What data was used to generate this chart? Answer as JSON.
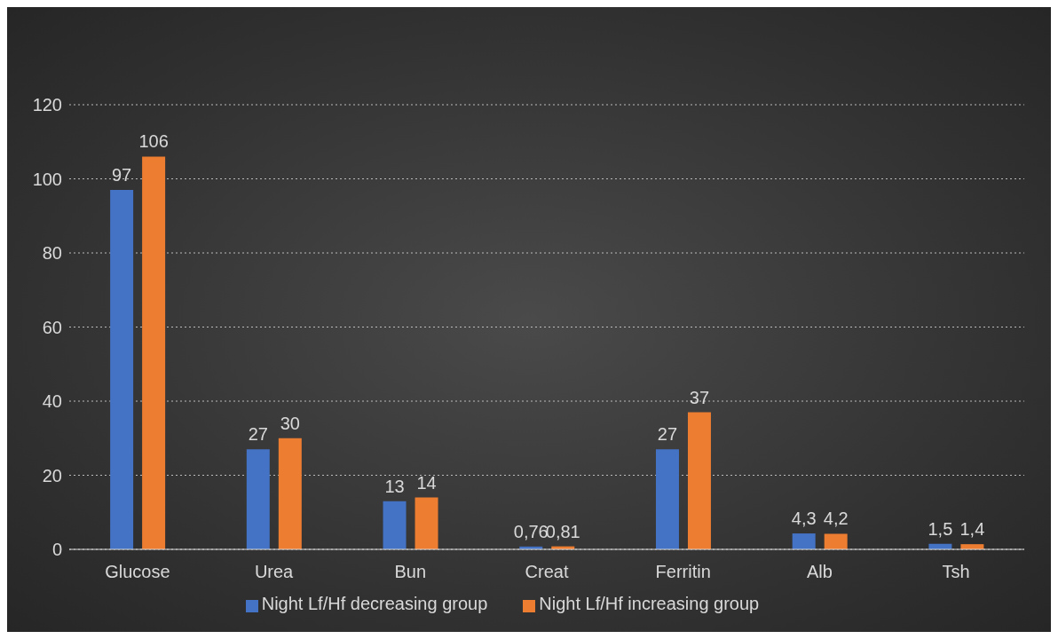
{
  "chart_data": {
    "type": "bar",
    "categories": [
      "Glucose",
      "Urea",
      "Bun",
      "Creat",
      "Ferritin",
      "Alb",
      "Tsh"
    ],
    "series": [
      {
        "name": "Night Lf/Hf decreasing group",
        "color": "#4472c4",
        "values": [
          97,
          27,
          13,
          0.76,
          27,
          4.3,
          1.5
        ],
        "value_labels": [
          "97",
          "27",
          "13",
          "0,76",
          "27",
          "4,3",
          "1,5"
        ]
      },
      {
        "name": "Night Lf/Hf increasing group",
        "color": "#ed7d31",
        "values": [
          106,
          30,
          14,
          0.81,
          37,
          4.2,
          1.4
        ],
        "value_labels": [
          "106",
          "30",
          "14",
          "0,81",
          "37",
          "4,2",
          "1,4"
        ]
      }
    ],
    "ylim": [
      0,
      120
    ],
    "yticks": [
      0,
      20,
      40,
      60,
      80,
      100,
      120
    ],
    "grid": "y",
    "legend": "bottom"
  }
}
